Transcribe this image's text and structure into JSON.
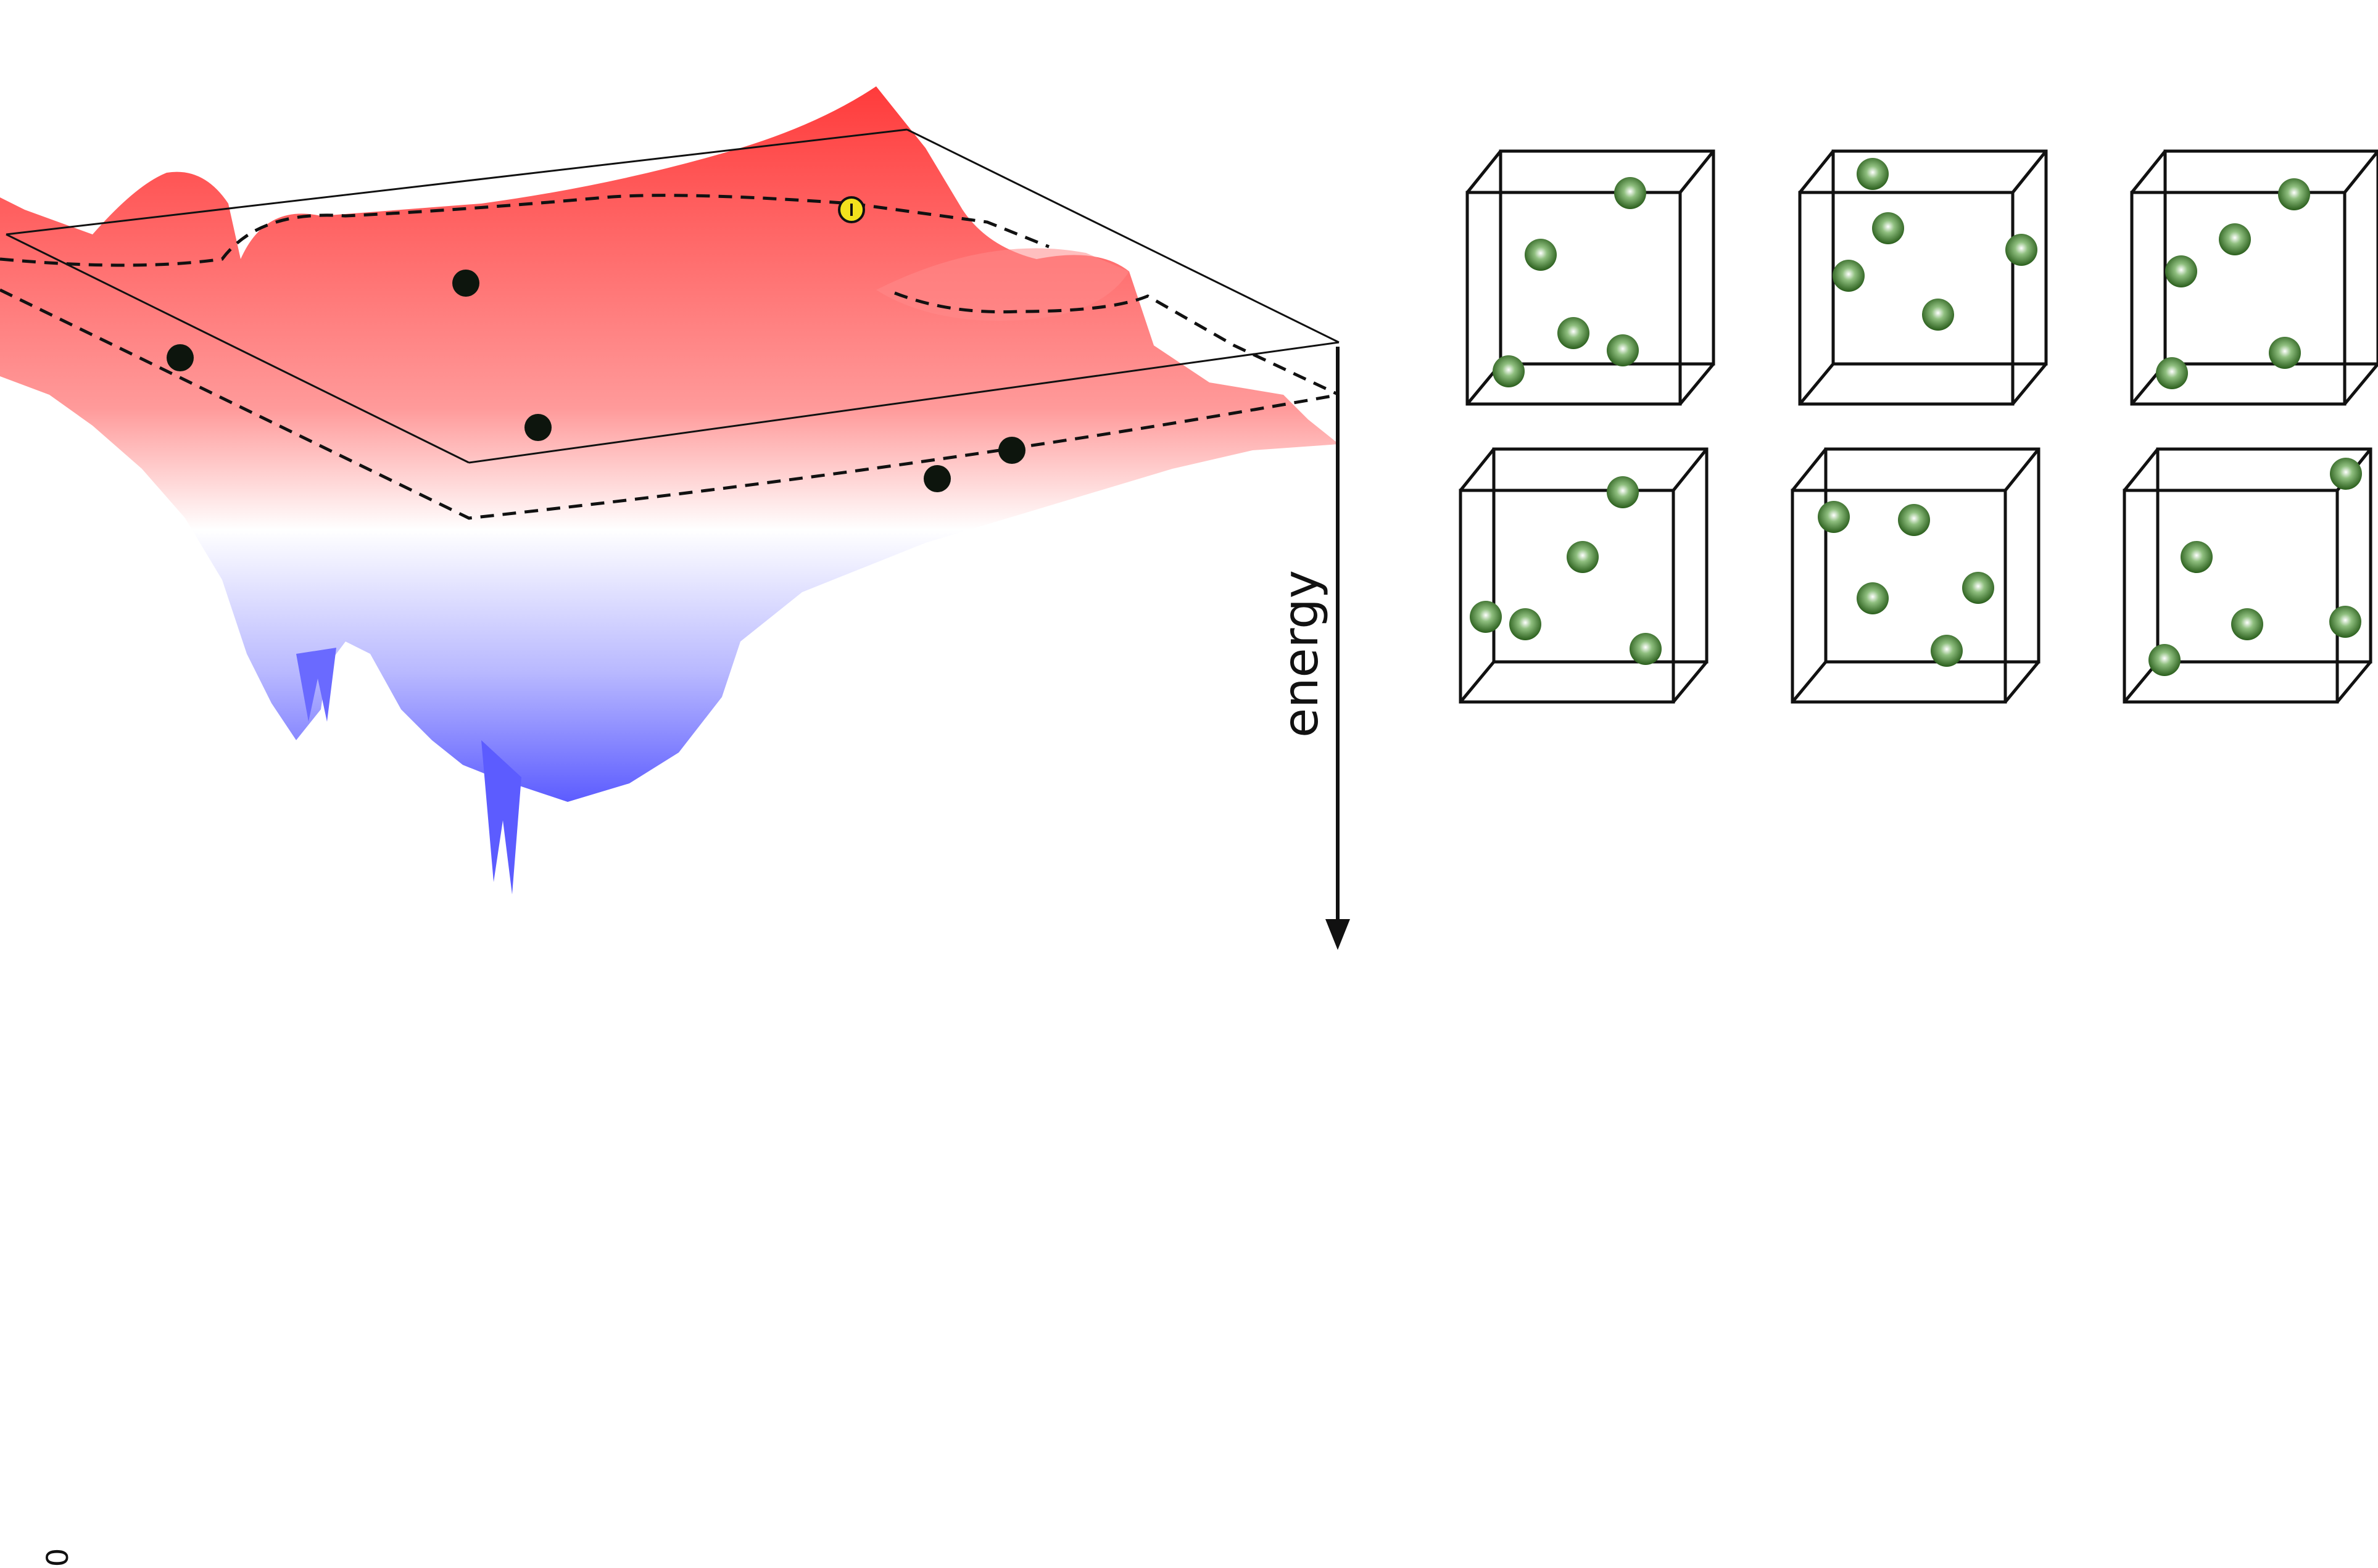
{
  "figure": {
    "energy_axis_label": "energy",
    "corner_label": "0",
    "colors": {
      "surface_high": "#ff3b3b",
      "surface_mid": "#ffffff",
      "surface_low": "#5c5cff",
      "minimum_point": "#0d150d",
      "saddle_point": "#f2e21d",
      "particle": "#2e6b22",
      "cube_edge": "#111111"
    },
    "landscape": {
      "minima_count": 6,
      "saddle_count": 1
    },
    "configurations": {
      "rows": 2,
      "columns": 3,
      "particles_per_box": 5
    }
  }
}
